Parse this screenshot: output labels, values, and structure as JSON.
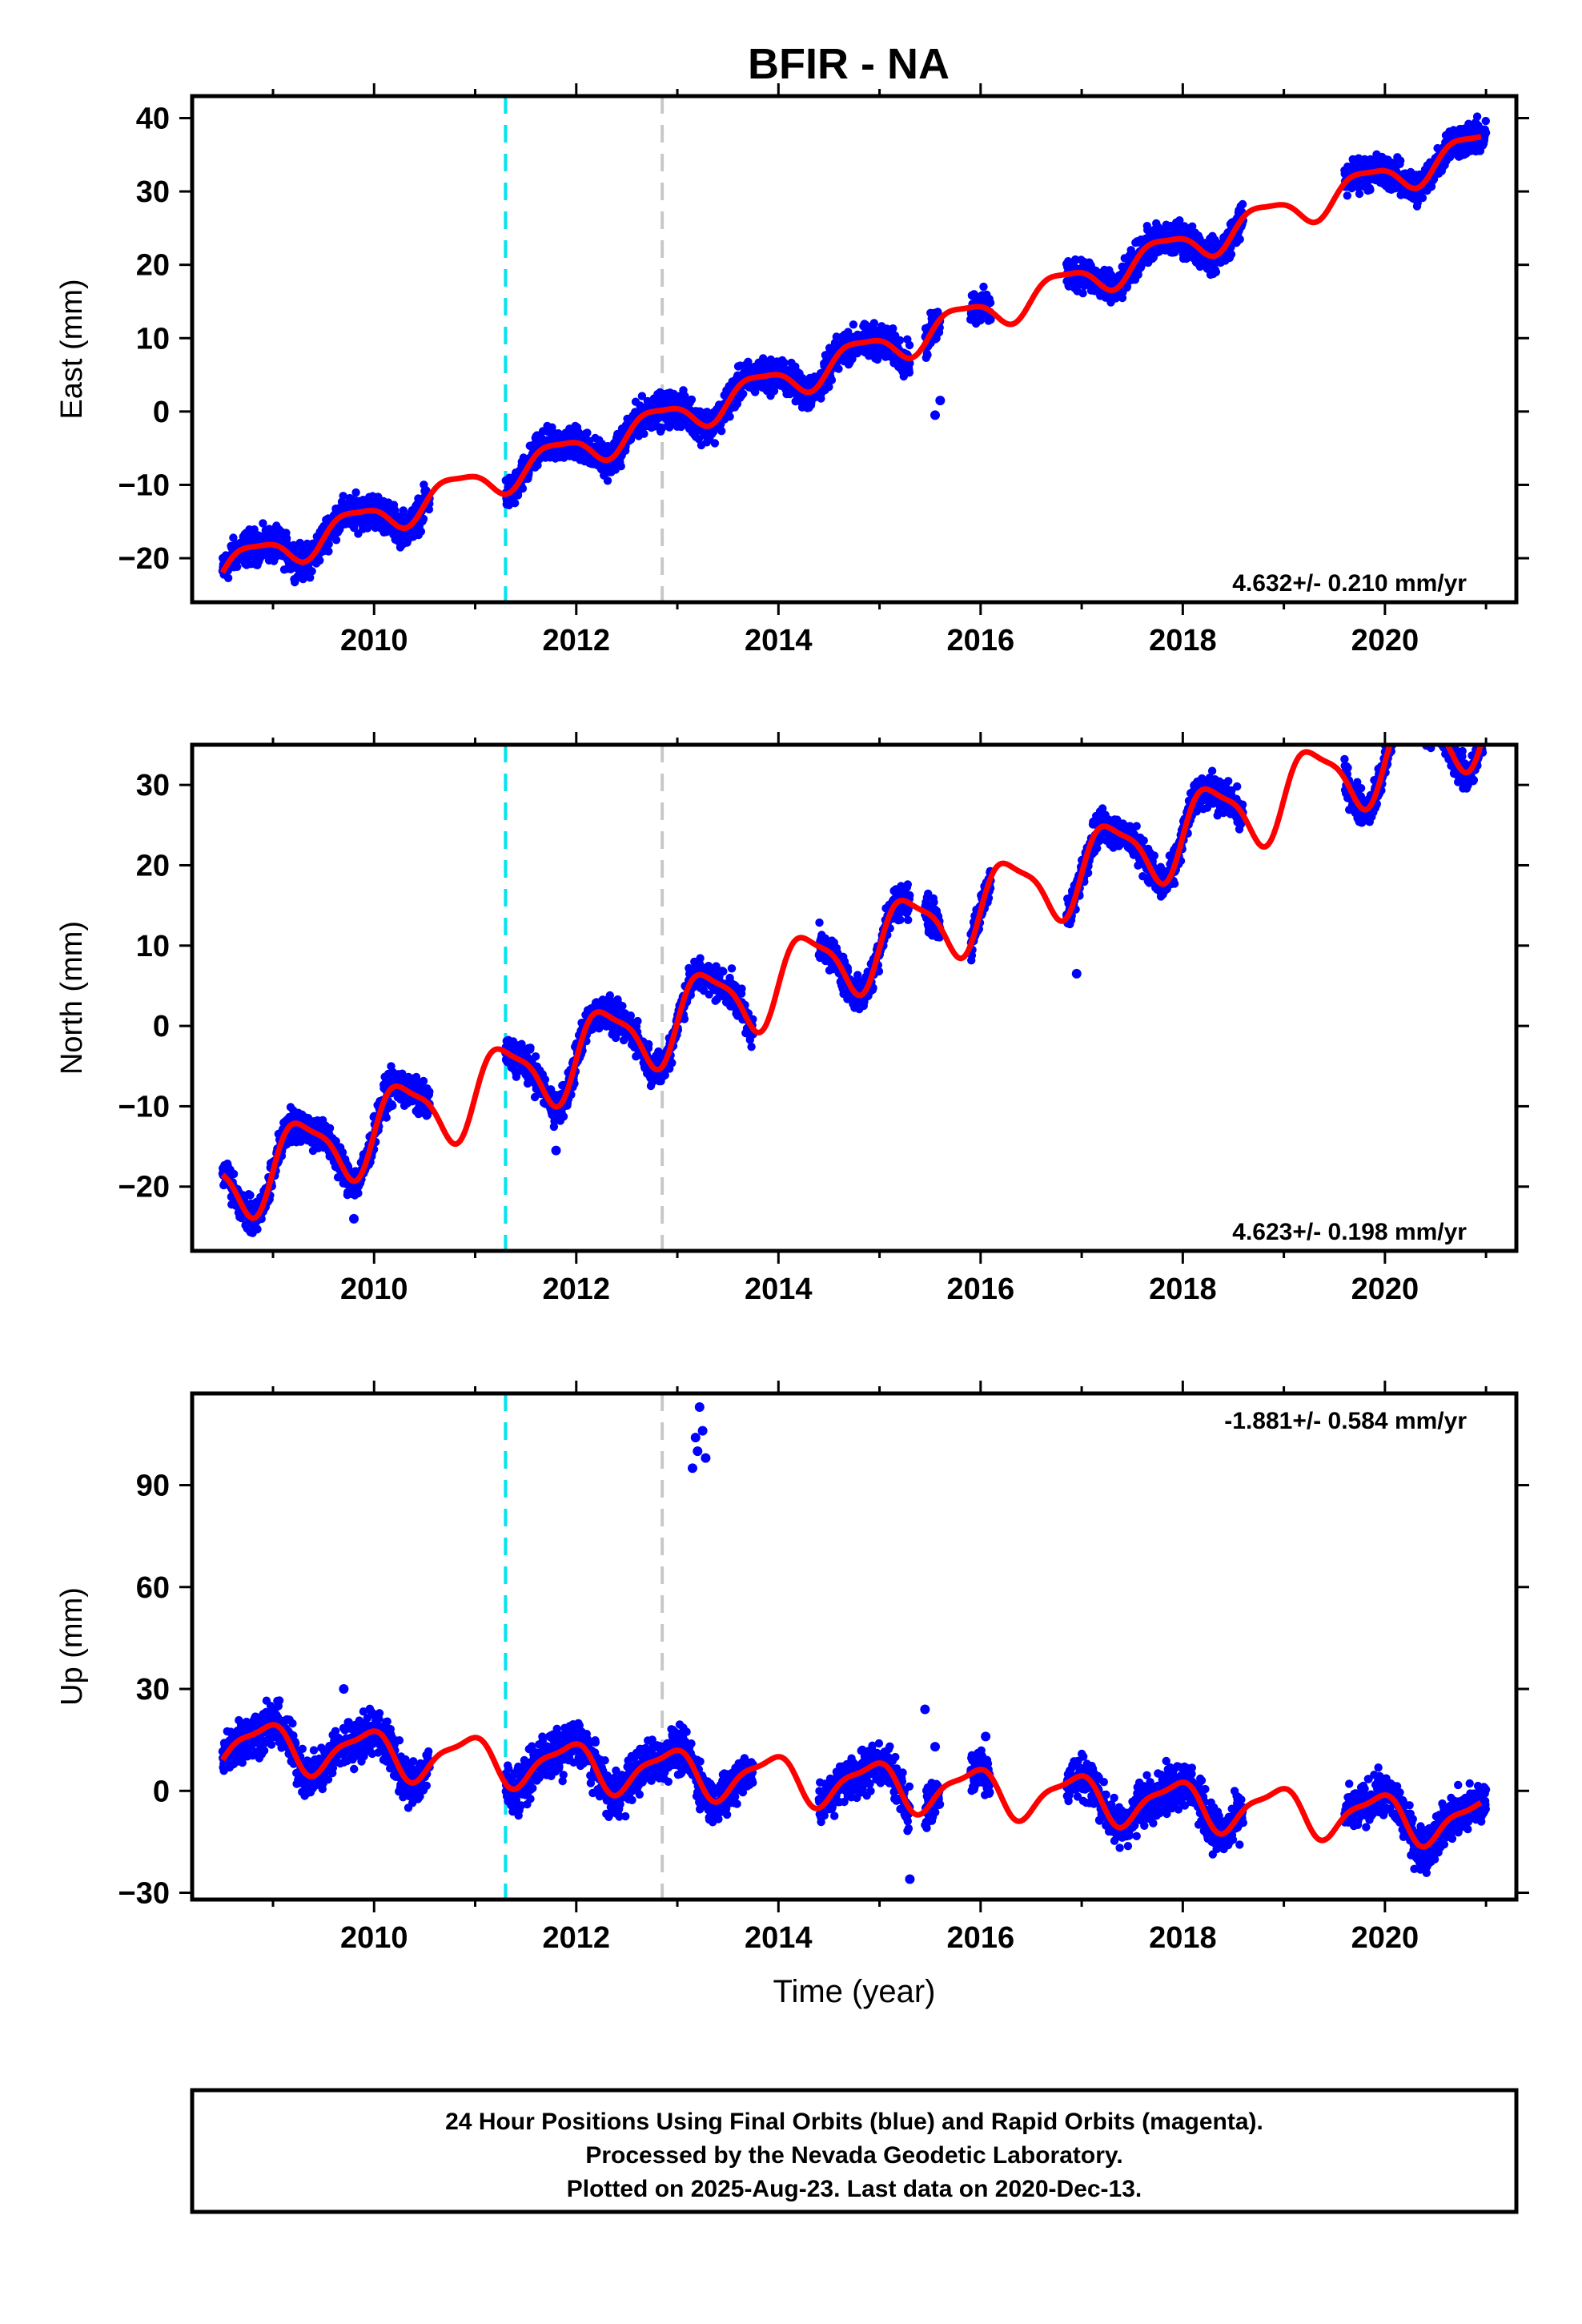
{
  "figure_title": "BFIR - NA",
  "colors": {
    "final_orbits": "#0000ff",
    "model_fit": "#ff0000",
    "antenna_change": "#00e5ee",
    "equipment_change": "#c8c8c8",
    "frame": "#000000"
  },
  "chart_data": [
    {
      "type": "scatter",
      "name": "east-panel",
      "ylabel": "East (mm)",
      "xlabel": "",
      "xlim": [
        2008.2,
        2021.3
      ],
      "ylim": [
        -26,
        43
      ],
      "xticks": [
        2010,
        2012,
        2014,
        2016,
        2018,
        2020
      ],
      "yticks": [
        -20,
        -10,
        0,
        10,
        20,
        30,
        40
      ],
      "rate": "4.632+/- 0.210 mm/yr",
      "rate_position": "bottom-right",
      "model": {
        "t0": 2008.5,
        "v0": -21.5,
        "rate": 4.632,
        "a1": 2.2,
        "p1": 2.8,
        "a2": 0.6,
        "p2": 0.5
      },
      "segments": [
        [
          2008.5,
          2010.55
        ],
        [
          2011.3,
          2012.9
        ],
        [
          2012.9,
          2013.75
        ],
        [
          2013.75,
          2014.3
        ],
        [
          2014.3,
          2015.3
        ],
        [
          2015.45,
          2015.6
        ],
        [
          2015.9,
          2016.1
        ],
        [
          2016.85,
          2018.6
        ],
        [
          2019.6,
          2021.0
        ]
      ],
      "scatter": 1.4,
      "outliers": [
        [
          2008.95,
          -19.5
        ],
        [
          2009.25,
          -22.5
        ],
        [
          2015.55,
          -0.5
        ],
        [
          2015.6,
          1.5
        ]
      ],
      "gaps_note": ""
    },
    {
      "type": "scatter",
      "name": "north-panel",
      "ylabel": "North (mm)",
      "xlabel": "",
      "xlim": [
        2008.2,
        2021.3
      ],
      "ylim": [
        -28,
        35
      ],
      "xticks": [
        2010,
        2012,
        2014,
        2016,
        2018,
        2020
      ],
      "yticks": [
        -20,
        -10,
        0,
        10,
        20,
        30
      ],
      "rate": "4.623+/- 0.198 mm/yr",
      "rate_position": "bottom-right",
      "model": {
        "t0": 2008.5,
        "v0": -19.8,
        "rate": 4.623,
        "a1": 4.6,
        "p1": -0.2,
        "a2": 1.2,
        "p2": 0.3
      },
      "segments": [
        [
          2008.5,
          2010.55
        ],
        [
          2011.3,
          2012.9
        ],
        [
          2012.9,
          2013.75
        ],
        [
          2014.4,
          2015.3
        ],
        [
          2015.45,
          2015.6
        ],
        [
          2015.9,
          2016.1
        ],
        [
          2016.85,
          2018.6
        ],
        [
          2019.6,
          2021.0
        ]
      ],
      "scatter": 1.3,
      "outliers": [
        [
          2009.8,
          -24
        ],
        [
          2011.8,
          -15.5
        ],
        [
          2015.5,
          14
        ],
        [
          2016.95,
          6.5
        ]
      ],
      "gaps_note": ""
    },
    {
      "type": "scatter",
      "name": "up-panel",
      "ylabel": "Up (mm)",
      "xlabel": "Time (year)",
      "xlim": [
        2008.2,
        2021.3
      ],
      "ylim": [
        -32,
        117
      ],
      "xticks": [
        2010,
        2012,
        2014,
        2016,
        2018,
        2020
      ],
      "yticks": [
        -30,
        0,
        30,
        60,
        90
      ],
      "rate": "-1.881+/- 0.584 mm/yr",
      "rate_position": "top-right",
      "model": {
        "t0": 2008.5,
        "v0": 14.0,
        "rate": -1.881,
        "a1": 6.5,
        "p1": 2.1,
        "a2": 2.0,
        "p2": 0.4
      },
      "segments": [
        [
          2008.5,
          2010.55
        ],
        [
          2011.3,
          2012.9
        ],
        [
          2012.9,
          2013.75
        ],
        [
          2014.4,
          2015.3
        ],
        [
          2015.45,
          2015.6
        ],
        [
          2015.9,
          2016.1
        ],
        [
          2016.85,
          2018.6
        ],
        [
          2019.6,
          2021.0
        ]
      ],
      "scatter": 4.0,
      "outliers": [
        [
          2013.15,
          95
        ],
        [
          2013.2,
          100
        ],
        [
          2013.25,
          106
        ],
        [
          2013.22,
          113
        ],
        [
          2013.18,
          104
        ],
        [
          2013.28,
          98
        ],
        [
          2015.3,
          -26
        ],
        [
          2015.45,
          24
        ],
        [
          2015.55,
          13
        ],
        [
          2016.05,
          16
        ],
        [
          2009.7,
          30
        ]
      ],
      "gaps_note": ""
    }
  ],
  "events": [
    {
      "name": "antenna-change-line",
      "year": 2011.3,
      "color": "#00e5ee"
    },
    {
      "name": "equipment-change-line",
      "year": 2012.85,
      "color": "#c8c8c8"
    }
  ],
  "footer": {
    "line1": "24 Hour Positions Using Final Orbits (blue) and Rapid Orbits (magenta).",
    "line2": "Processed by the Nevada Geodetic Laboratory.",
    "line3": "Plotted on 2025-Aug-23. Last data on 2020-Dec-13."
  }
}
